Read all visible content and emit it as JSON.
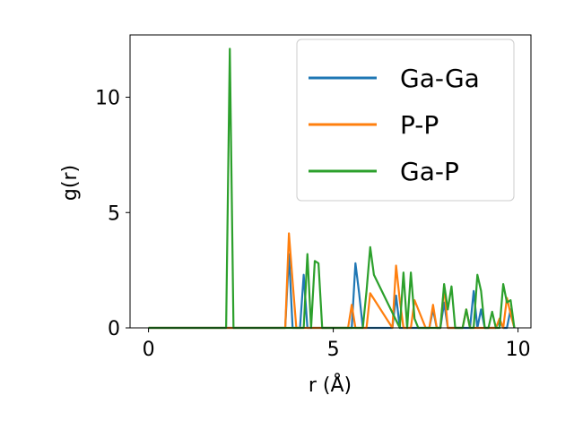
{
  "chart_data": {
    "type": "line",
    "title": "",
    "xlabel": "r (Å)",
    "ylabel": "g(r)",
    "xlim": [
      -0.5,
      10.35
    ],
    "ylim": [
      0,
      12.7
    ],
    "xticks": [
      0,
      5,
      10
    ],
    "yticks": [
      0,
      5,
      10
    ],
    "xtick_labels": [
      "0",
      "5",
      "10"
    ],
    "ytick_labels": [
      "0",
      "5",
      "10"
    ],
    "grid": false,
    "legend_position": "top-right",
    "series": [
      {
        "name": "Ga-Ga",
        "color": "#1f77b4",
        "x": [
          0,
          3.7,
          3.8,
          3.9,
          4.1,
          4.2,
          4.3,
          5.5,
          5.6,
          5.7,
          5.8,
          6.6,
          6.7,
          6.8,
          7.5,
          7.6,
          7.7,
          7.8,
          7.9,
          8.0,
          8.1,
          8.7,
          8.8,
          8.9,
          9.0,
          9.1,
          9.4,
          9.5,
          9.6,
          9.7,
          9.8,
          9.9
        ],
        "y": [
          0,
          0,
          3.2,
          0,
          0,
          2.3,
          0,
          0,
          2.8,
          1.5,
          0,
          0,
          1.4,
          0,
          0,
          0,
          0.8,
          0,
          0,
          1.1,
          0,
          0,
          1.6,
          0,
          0.8,
          0,
          0,
          0.3,
          0,
          0,
          0.8,
          0
        ]
      },
      {
        "name": "P-P",
        "color": "#ff7f0e",
        "x": [
          0,
          3.7,
          3.8,
          3.9,
          4.0,
          5.4,
          5.5,
          5.6,
          5.8,
          5.9,
          6.0,
          6.6,
          6.7,
          6.8,
          6.9,
          7.0,
          7.1,
          7.2,
          7.5,
          7.6,
          7.7,
          7.8,
          7.9,
          8.0,
          8.1,
          8.5,
          8.6,
          8.7,
          9.3,
          9.4,
          9.5,
          9.6,
          9.7,
          9.8,
          9.9
        ],
        "y": [
          0,
          0,
          4.1,
          2.0,
          0,
          0,
          1.0,
          0,
          0,
          0,
          1.5,
          0,
          2.7,
          1.2,
          0,
          0,
          0,
          1.2,
          0,
          0,
          1.0,
          0,
          0,
          1.8,
          0,
          0,
          0.8,
          0,
          0,
          0,
          0.4,
          0,
          1.3,
          0.6,
          0
        ]
      },
      {
        "name": "Ga-P",
        "color": "#2ca02c",
        "x": [
          0,
          2.1,
          2.2,
          2.3,
          4.2,
          4.3,
          4.4,
          4.5,
          4.6,
          4.7,
          5.7,
          5.8,
          5.9,
          6.0,
          6.1,
          6.8,
          6.9,
          7.0,
          7.1,
          7.2,
          7.3,
          7.8,
          7.9,
          8.0,
          8.1,
          8.2,
          8.3,
          8.4,
          8.5,
          8.6,
          8.7,
          8.8,
          8.9,
          9.0,
          9.1,
          9.2,
          9.3,
          9.4,
          9.5,
          9.6,
          9.7,
          9.8,
          9.9
        ],
        "y": [
          0,
          0,
          12.1,
          0,
          0,
          3.2,
          0,
          2.9,
          2.8,
          0,
          0,
          0,
          1.6,
          3.5,
          2.3,
          0,
          2.4,
          0,
          2.4,
          0.4,
          0,
          0,
          0,
          1.9,
          0.8,
          1.8,
          0,
          0,
          0,
          0.8,
          0,
          0,
          2.3,
          1.6,
          0,
          0,
          0.7,
          0,
          0,
          1.9,
          1.1,
          1.2,
          0
        ]
      }
    ]
  }
}
